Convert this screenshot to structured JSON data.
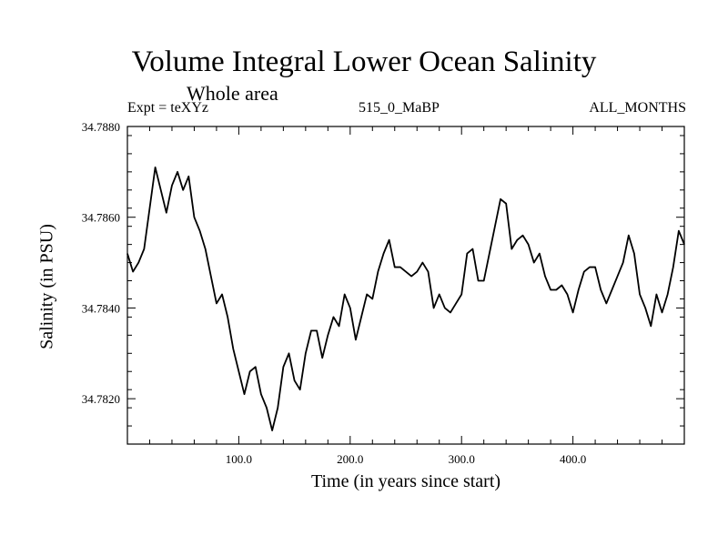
{
  "chart_data": {
    "type": "line",
    "title": "Volume Integral Lower Ocean Salinity",
    "subtitle": "Whole area",
    "annotations": {
      "expt": "Expt = teXYz",
      "run": "515_0_MaBP",
      "months": "ALL_MONTHS"
    },
    "xlabel": "Time (in years since start)",
    "ylabel": "Salinity (in PSU)",
    "xlim": [
      0,
      500
    ],
    "ylim": [
      34.781,
      34.788
    ],
    "x_ticks": [
      100,
      200,
      300,
      400
    ],
    "x_tick_labels": [
      "100.0",
      "200.0",
      "300.0",
      "400.0"
    ],
    "y_ticks": [
      34.782,
      34.784,
      34.786,
      34.788
    ],
    "y_tick_labels": [
      "34.7820",
      "34.7840",
      "34.7860",
      "34.7880"
    ],
    "grid": false,
    "series": [
      {
        "color": "#000000",
        "x": [
          0,
          5,
          10,
          15,
          20,
          25,
          30,
          35,
          40,
          45,
          50,
          55,
          60,
          65,
          70,
          75,
          80,
          85,
          90,
          95,
          100,
          105,
          110,
          115,
          120,
          125,
          130,
          135,
          140,
          145,
          150,
          155,
          160,
          165,
          170,
          175,
          180,
          185,
          190,
          195,
          200,
          205,
          210,
          215,
          220,
          225,
          230,
          235,
          240,
          245,
          250,
          255,
          260,
          265,
          270,
          275,
          280,
          285,
          290,
          295,
          300,
          305,
          310,
          315,
          320,
          325,
          330,
          335,
          340,
          345,
          350,
          355,
          360,
          365,
          370,
          375,
          380,
          385,
          390,
          395,
          400,
          405,
          410,
          415,
          420,
          425,
          430,
          435,
          440,
          445,
          450,
          455,
          460,
          465,
          470,
          475,
          480,
          485,
          490,
          495,
          500
        ],
        "values": [
          34.7852,
          34.7848,
          34.785,
          34.7853,
          34.7862,
          34.7871,
          34.7866,
          34.7861,
          34.7867,
          34.787,
          34.7866,
          34.7869,
          34.786,
          34.7857,
          34.7853,
          34.7847,
          34.7841,
          34.7843,
          34.7838,
          34.7831,
          34.7826,
          34.7821,
          34.7826,
          34.7827,
          34.7821,
          34.7818,
          34.7813,
          34.7818,
          34.7827,
          34.783,
          34.7824,
          34.7822,
          34.783,
          34.7835,
          34.7835,
          34.7829,
          34.7834,
          34.7838,
          34.7836,
          34.7843,
          34.784,
          34.7833,
          34.7838,
          34.7843,
          34.7842,
          34.7848,
          34.7852,
          34.7855,
          34.7849,
          34.7849,
          34.7848,
          34.7847,
          34.7848,
          34.785,
          34.7848,
          34.784,
          34.7843,
          34.784,
          34.7839,
          34.7841,
          34.7843,
          34.7852,
          34.7853,
          34.7846,
          34.7846,
          34.7852,
          34.7858,
          34.7864,
          34.7863,
          34.7853,
          34.7855,
          34.7856,
          34.7854,
          34.785,
          34.7852,
          34.7847,
          34.7844,
          34.7844,
          34.7845,
          34.7843,
          34.7839,
          34.7844,
          34.7848,
          34.7849,
          34.7849,
          34.7844,
          34.7841,
          34.7844,
          34.7847,
          34.785,
          34.7856,
          34.7852,
          34.7843,
          34.784,
          34.7836,
          34.7843,
          34.7839,
          34.7843,
          34.7849,
          34.7857,
          34.7854
        ]
      }
    ]
  }
}
